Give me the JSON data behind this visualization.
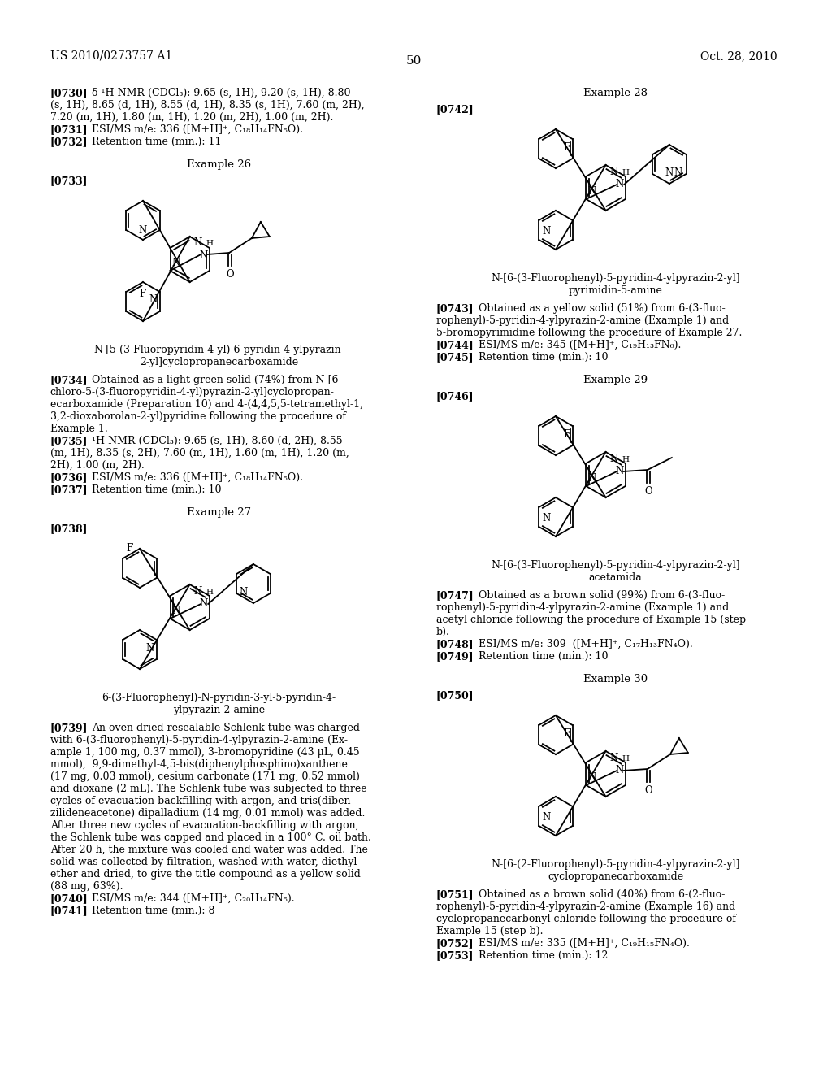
{
  "page_header_left": "US 2010/0273757 A1",
  "page_header_right": "Oct. 28, 2010",
  "page_number": "50",
  "background_color": "#ffffff",
  "text_color": "#000000"
}
